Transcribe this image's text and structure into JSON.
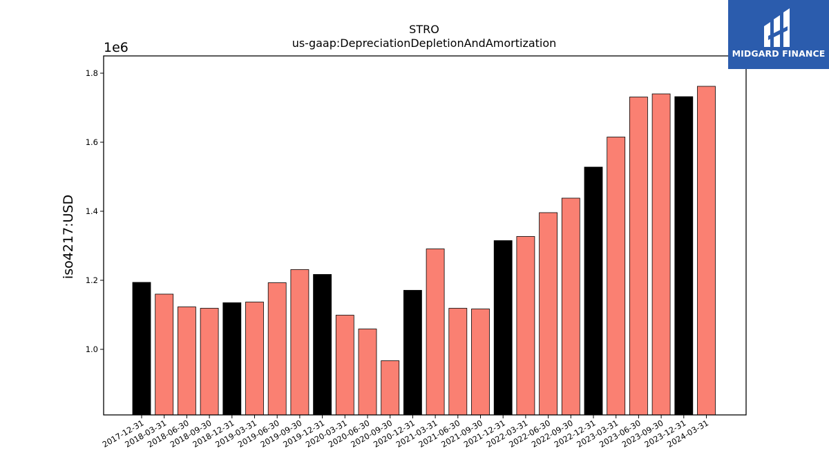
{
  "brand": {
    "name": "MIDGARD FINANCE",
    "color": "#2b5cad",
    "icon": "midgard-logo-icon"
  },
  "chart_data": {
    "type": "bar",
    "title": "STRO",
    "subtitle": "us-gaap:DepreciationDepletionAndAmortization",
    "xlabel": "",
    "ylabel": "iso4217:USD",
    "scale_label": "1e6",
    "ylim": [
      0.81,
      1.85
    ],
    "yticks": [
      1.0,
      1.2,
      1.4,
      1.6,
      1.8
    ],
    "ytick_labels": [
      "1.0",
      "1.2",
      "1.4",
      "1.6",
      "1.8"
    ],
    "grid": false,
    "legend": "none",
    "colors": {
      "annual": "#000000",
      "quarterly": "#fa8072",
      "edge": "#000000"
    },
    "categories": [
      "2017-12-31",
      "2018-03-31",
      "2018-06-30",
      "2018-09-30",
      "2018-12-31",
      "2019-03-31",
      "2019-06-30",
      "2019-09-30",
      "2019-12-31",
      "2020-03-31",
      "2020-06-30",
      "2020-09-30",
      "2020-12-31",
      "2021-03-31",
      "2021-06-30",
      "2021-09-30",
      "2021-12-31",
      "2022-03-31",
      "2022-06-30",
      "2022-09-30",
      "2022-12-31",
      "2023-03-31",
      "2023-06-30",
      "2023-09-30",
      "2023-12-31",
      "2024-03-31"
    ],
    "values": [
      1.194,
      1.16,
      1.123,
      1.119,
      1.135,
      1.137,
      1.193,
      1.231,
      1.217,
      1.099,
      1.059,
      0.967,
      1.171,
      1.291,
      1.119,
      1.117,
      1.315,
      1.327,
      1.396,
      1.438,
      1.528,
      1.615,
      1.731,
      1.74,
      1.732,
      1.762
    ],
    "highlight": [
      true,
      false,
      false,
      false,
      true,
      false,
      false,
      false,
      true,
      false,
      false,
      false,
      true,
      false,
      false,
      false,
      true,
      false,
      false,
      false,
      true,
      false,
      false,
      false,
      true,
      false
    ]
  }
}
